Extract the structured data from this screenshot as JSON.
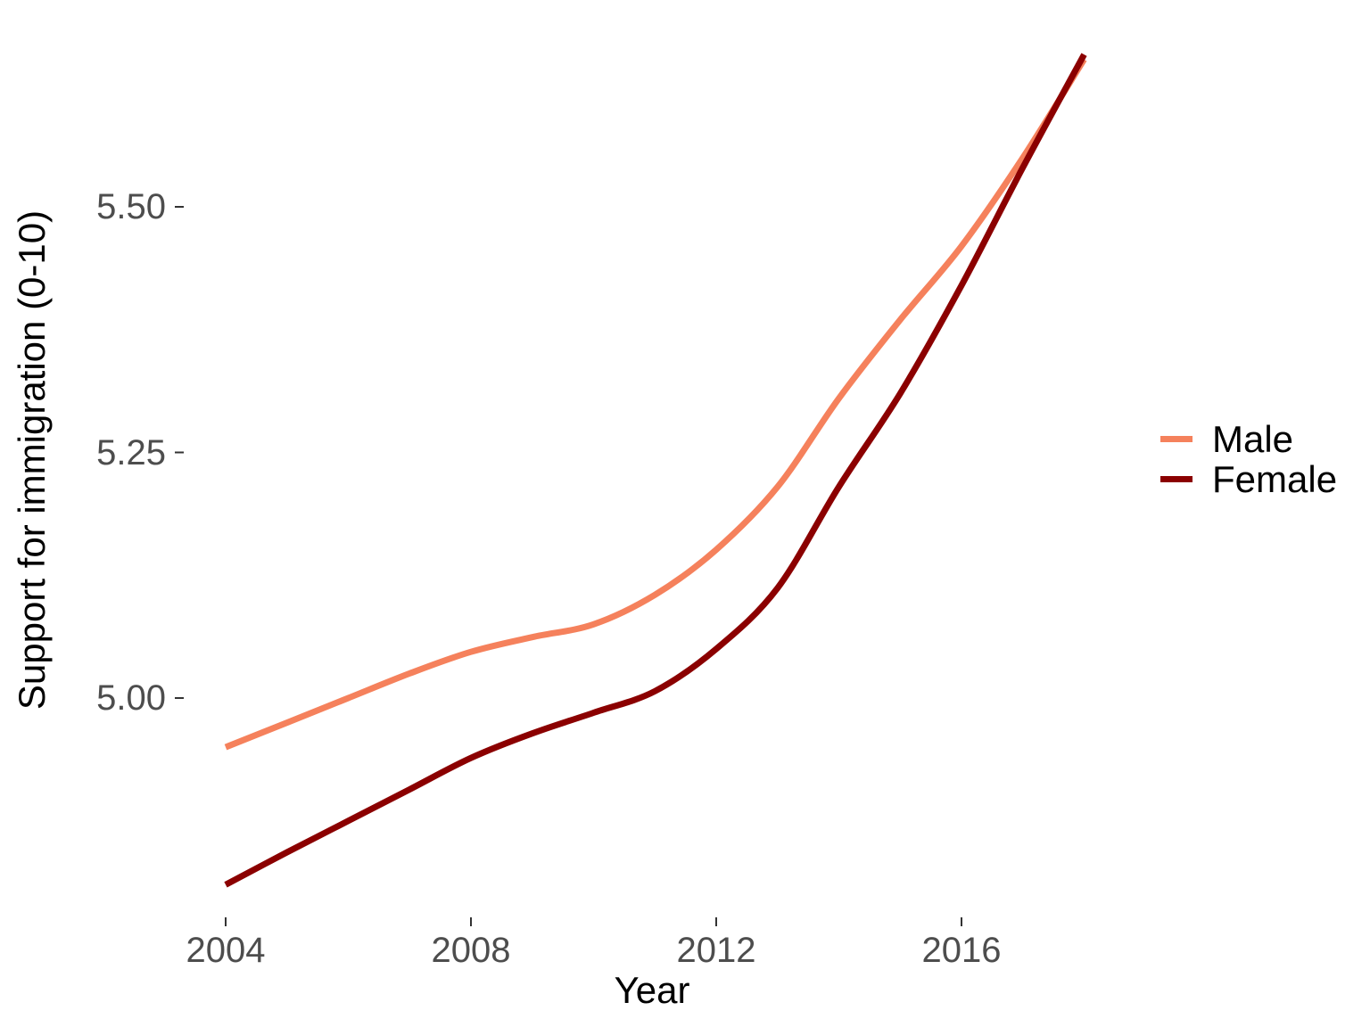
{
  "chart_data": {
    "type": "line",
    "title": "",
    "xlabel": "Year",
    "ylabel": "Support for immigration (0-10)",
    "x_tick_labels": [
      "2004",
      "2008",
      "2012",
      "2016"
    ],
    "x_tick_values": [
      2004,
      2008,
      2012,
      2016
    ],
    "y_tick_labels": [
      "5.00",
      "5.25",
      "5.50"
    ],
    "y_tick_values": [
      5.0,
      5.25,
      5.5
    ],
    "xlim": [
      2004,
      2018
    ],
    "ylim": [
      4.79,
      5.67
    ],
    "grid": false,
    "panel_background": "#ffffff",
    "legend_position": "right",
    "x": [
      2004,
      2005,
      2006,
      2007,
      2008,
      2009,
      2010,
      2011,
      2012,
      2013,
      2014,
      2015,
      2016,
      2017,
      2018
    ],
    "series": [
      {
        "name": "Male",
        "color": "#F5815C",
        "values": [
          4.95,
          4.975,
          5.0,
          5.025,
          5.047,
          5.062,
          5.075,
          5.105,
          5.151,
          5.215,
          5.305,
          5.385,
          5.46,
          5.55,
          5.65
        ]
      },
      {
        "name": "Female",
        "color": "#8B0000",
        "values": [
          4.81,
          4.843,
          4.875,
          4.907,
          4.939,
          4.964,
          4.985,
          5.007,
          5.05,
          5.112,
          5.215,
          5.31,
          5.42,
          5.54,
          5.655
        ]
      }
    ],
    "colors": {
      "axis_text": "#4d4d4d",
      "axis_title": "#000000",
      "tick_mark": "#333333"
    }
  }
}
